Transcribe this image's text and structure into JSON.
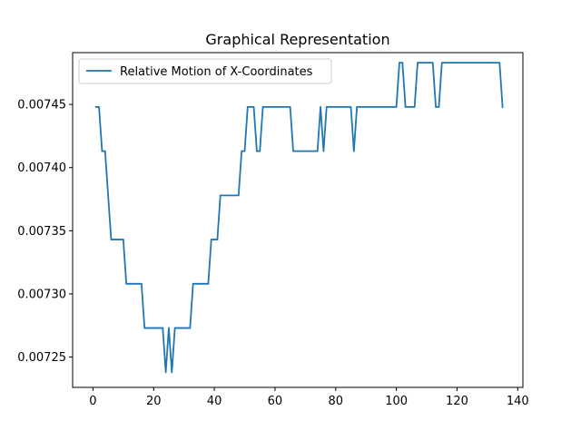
{
  "chart_data": {
    "type": "line",
    "title": "Graphical Representation",
    "xlabel": "",
    "ylabel": "",
    "xlim": [
      -6.7,
      141.7
    ],
    "ylim": [
      0.007226,
      0.007491
    ],
    "xticks": [
      0,
      20,
      40,
      60,
      80,
      100,
      120,
      140
    ],
    "yticks": [
      0.00725,
      0.0073,
      0.00735,
      0.0074,
      0.00745
    ],
    "ytick_labels": [
      "0.00725",
      "0.00730",
      "0.00735",
      "0.00740",
      "0.00745"
    ],
    "legend_position": "upper-left",
    "grid": false,
    "colors": {
      "series": "#1f77b4"
    },
    "series": [
      {
        "name": "Relative Motion of X-Coordinates",
        "x": [
          1,
          2,
          3,
          4,
          5,
          6,
          7,
          8,
          9,
          10,
          11,
          12,
          13,
          14,
          15,
          16,
          17,
          18,
          19,
          20,
          21,
          22,
          23,
          24,
          25,
          26,
          27,
          28,
          29,
          30,
          31,
          32,
          33,
          34,
          35,
          36,
          37,
          38,
          39,
          40,
          41,
          42,
          43,
          44,
          45,
          46,
          47,
          48,
          49,
          50,
          51,
          52,
          53,
          54,
          55,
          56,
          57,
          58,
          59,
          60,
          61,
          62,
          63,
          64,
          65,
          66,
          67,
          68,
          69,
          70,
          71,
          72,
          73,
          74,
          75,
          76,
          77,
          78,
          79,
          80,
          81,
          82,
          83,
          84,
          85,
          86,
          87,
          88,
          89,
          90,
          91,
          92,
          93,
          94,
          95,
          96,
          97,
          98,
          99,
          100,
          101,
          102,
          103,
          104,
          105,
          106,
          107,
          108,
          109,
          110,
          111,
          112,
          113,
          114,
          115,
          116,
          117,
          118,
          119,
          120,
          121,
          122,
          123,
          124,
          125,
          126,
          127,
          128,
          129,
          130,
          131,
          132,
          133,
          134,
          135
        ],
        "y": [
          0.007448,
          0.007448,
          0.007413,
          0.007413,
          0.007378,
          0.007343,
          0.007343,
          0.007343,
          0.007343,
          0.007343,
          0.007308,
          0.007308,
          0.007308,
          0.007308,
          0.007308,
          0.007308,
          0.007273,
          0.007273,
          0.007273,
          0.007273,
          0.007273,
          0.007273,
          0.007273,
          0.007238,
          0.007273,
          0.007238,
          0.007273,
          0.007273,
          0.007273,
          0.007273,
          0.007273,
          0.007273,
          0.007308,
          0.007308,
          0.007308,
          0.007308,
          0.007308,
          0.007308,
          0.007343,
          0.007343,
          0.007343,
          0.007378,
          0.007378,
          0.007378,
          0.007378,
          0.007378,
          0.007378,
          0.007378,
          0.007413,
          0.007413,
          0.007448,
          0.007448,
          0.007448,
          0.007413,
          0.007413,
          0.007448,
          0.007448,
          0.007448,
          0.007448,
          0.007448,
          0.007448,
          0.007448,
          0.007448,
          0.007448,
          0.007448,
          0.007413,
          0.007413,
          0.007413,
          0.007413,
          0.007413,
          0.007413,
          0.007413,
          0.007413,
          0.007413,
          0.007448,
          0.007413,
          0.007448,
          0.007448,
          0.007448,
          0.007448,
          0.007448,
          0.007448,
          0.007448,
          0.007448,
          0.007448,
          0.007413,
          0.007448,
          0.007448,
          0.007448,
          0.007448,
          0.007448,
          0.007448,
          0.007448,
          0.007448,
          0.007448,
          0.007448,
          0.007448,
          0.007448,
          0.007448,
          0.007448,
          0.007483,
          0.007483,
          0.007448,
          0.007448,
          0.007448,
          0.007448,
          0.007483,
          0.007483,
          0.007483,
          0.007483,
          0.007483,
          0.007483,
          0.007448,
          0.007448,
          0.007483,
          0.007483,
          0.007483,
          0.007483,
          0.007483,
          0.007483,
          0.007483,
          0.007483,
          0.007483,
          0.007483,
          0.007483,
          0.007483,
          0.007483,
          0.007483,
          0.007483,
          0.007483,
          0.007483,
          0.007483,
          0.007483,
          0.007483,
          0.007448
        ]
      }
    ]
  }
}
